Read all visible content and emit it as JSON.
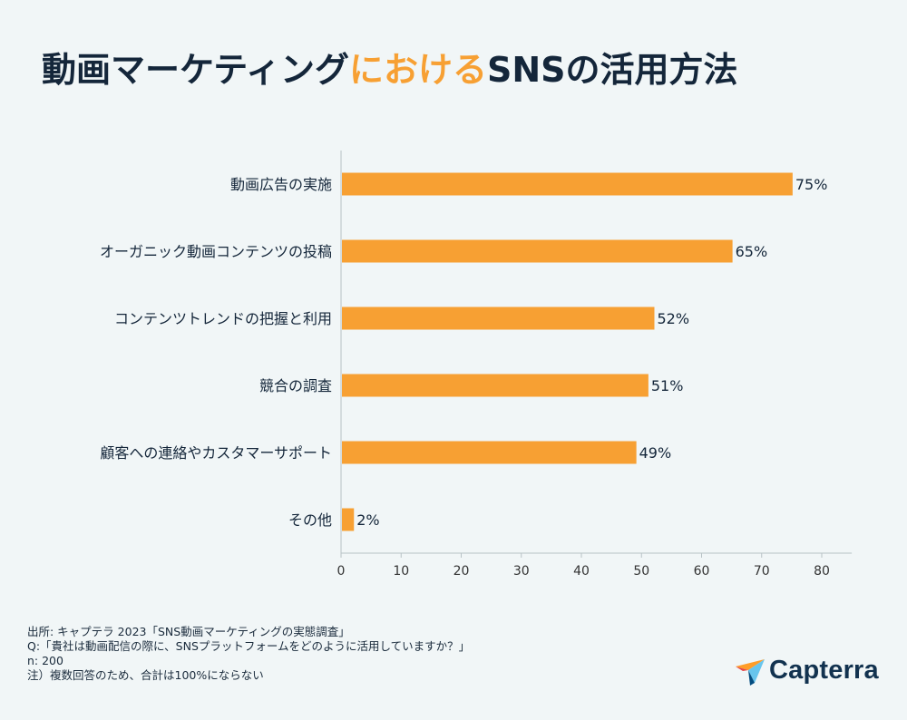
{
  "title": {
    "part1": "動画マーケティング",
    "part2": "における",
    "part3": "SNSの活用方法"
  },
  "colors": {
    "bar": "#f7a033",
    "highlight": "#f7a033",
    "text": "#14263a",
    "axis": "#b8c2c6"
  },
  "chart_data": {
    "type": "bar",
    "orientation": "horizontal",
    "categories": [
      "動画広告の実施",
      "オーガニック動画コンテンツの投稿",
      "コンテンツトレンドの把握と利用",
      "競合の調査",
      "顧客への連絡やカスタマーサポート",
      "その他"
    ],
    "values": [
      75,
      65,
      52,
      51,
      49,
      2
    ],
    "data_labels": [
      "75%",
      "65%",
      "52%",
      "51%",
      "49%",
      "2%"
    ],
    "xlim": [
      0,
      85
    ],
    "xticks": [
      0,
      10,
      20,
      30,
      40,
      50,
      60,
      70,
      80
    ],
    "xlabel": "",
    "ylabel": "",
    "grid": false
  },
  "footer": {
    "line1": "出所: キャプテラ 2023「SNS動画マーケティングの実態調査」",
    "line2": "Q:「貴社は動画配信の際に、SNSプラットフォームをどのように活用していますか？」",
    "line3": "n: 200",
    "line4": "注）複数回答のため、合計は100%にならない"
  },
  "logo": {
    "text": "Capterra",
    "icon": "capterra-arrow-icon"
  }
}
